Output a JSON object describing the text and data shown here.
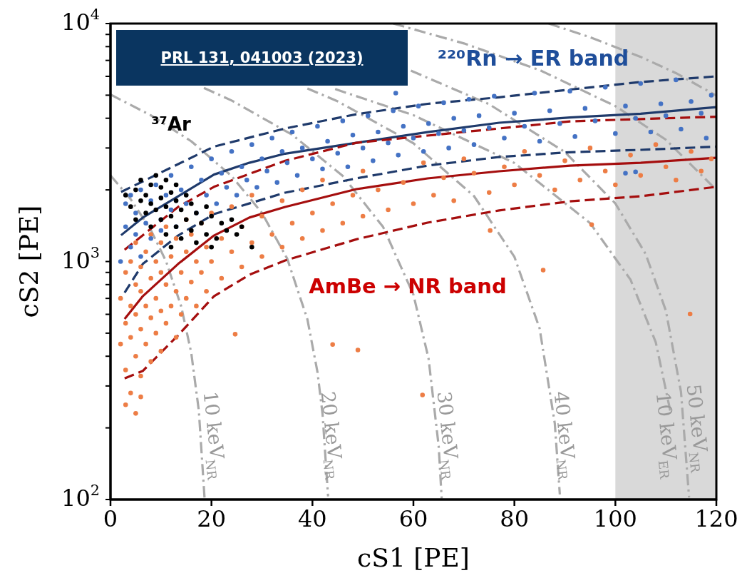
{
  "chart_data": {
    "type": "scatter",
    "xlabel": "cS1 [PE]",
    "ylabel": "cS2 [PE]",
    "xlim": [
      0,
      120
    ],
    "ylim": [
      100,
      10000
    ],
    "log": "y",
    "marker": "circle",
    "xticks": [
      0,
      20,
      40,
      60,
      80,
      100,
      120
    ],
    "yticks": [
      {
        "value": 100,
        "label": "10$^{2}$"
      },
      {
        "value": 200,
        "label": null
      },
      {
        "value": 300,
        "label": null
      },
      {
        "value": 400,
        "label": null
      },
      {
        "value": 500,
        "label": null
      },
      {
        "value": 600,
        "label": null
      },
      {
        "value": 700,
        "label": null
      },
      {
        "value": 800,
        "label": null
      },
      {
        "value": 900,
        "label": null
      },
      {
        "value": 1000,
        "label": "10$^{3}$"
      },
      {
        "value": 2000,
        "label": null
      },
      {
        "value": 3000,
        "label": null
      },
      {
        "value": 4000,
        "label": null
      },
      {
        "value": 5000,
        "label": null
      },
      {
        "value": 6000,
        "label": null
      },
      {
        "value": 7000,
        "label": null
      },
      {
        "value": 8000,
        "label": null
      },
      {
        "value": 9000,
        "label": null
      },
      {
        "value": 10000,
        "label": "10$^{4}$"
      }
    ],
    "bands": [
      {
        "axis": "x",
        "from": 100,
        "to": 120,
        "color": "#d9d9d9"
      }
    ],
    "series": [
      {
        "type": "line",
        "color": "#aaaaaa",
        "line_style": "dashdot",
        "marker": "none",
        "x": [
          0,
          4,
          8,
          11,
          14,
          16,
          17.5,
          18.65
        ],
        "values": [
          2300,
          1828,
          1356,
          1003,
          649,
          413,
          236,
          100
        ]
      },
      {
        "type": "line",
        "color": "#aaaaaa",
        "line_style": "dashdot",
        "marker": "none",
        "x": [
          0,
          8,
          16,
          24,
          30,
          35,
          39,
          41,
          42,
          43.1
        ],
        "values": [
          5030,
          4115,
          3201,
          2286,
          1600,
          1029,
          572,
          343,
          229,
          103
        ]
      },
      {
        "type": "line",
        "color": "#aaaaaa",
        "line_style": "dashdot",
        "marker": "none",
        "x": [
          18.5,
          24,
          36,
          46,
          54,
          60,
          63,
          65,
          65.6
        ],
        "values": [
          5363,
          4749,
          3408,
          2290,
          1397,
          726,
          391,
          168,
          101
        ]
      },
      {
        "type": "line",
        "color": "#aaaaaa",
        "line_style": "dashdot",
        "marker": "none",
        "x": [
          39,
          45,
          60,
          72,
          80,
          85,
          88,
          89
        ],
        "values": [
          5338,
          4710,
          3140,
          1884,
          1047,
          523,
          209,
          105
        ]
      },
      {
        "type": "line",
        "color": "#aaaaaa",
        "line_style": "dashdot",
        "marker": "none",
        "x": [
          59.5,
          75,
          90,
          100,
          106,
          110,
          113,
          114.6
        ],
        "values": [
          6338,
          4582,
          2885,
          1754,
          1075,
          622,
          283,
          102
        ]
      },
      {
        "type": "line",
        "color": "#aaaaaa",
        "line_style": "dashdot",
        "marker": "none",
        "x": [
          44.5,
          60,
          80,
          95,
          103,
          108,
          111
        ],
        "values": [
          5304,
          4121,
          2595,
          1450,
          839,
          458,
          229
        ]
      },
      {
        "type": "line",
        "color": "#aaaaaa",
        "line_style": "dashdot",
        "marker": "none",
        "x": [
          56,
          70,
          85,
          100,
          110,
          120
        ],
        "values": [
          10000,
          8250,
          6375,
          4500,
          3250,
          2000
        ]
      },
      {
        "type": "line",
        "color": "#aaaaaa",
        "line_style": "dashdot",
        "marker": "none",
        "x": [
          86.8,
          95,
          105,
          112,
          120
        ],
        "values": [
          10000,
          8757,
          7247,
          6190,
          4980
        ]
      },
      {
        "type": "scatter",
        "color": "#ed7d45",
        "x": [
          2,
          2,
          3,
          3,
          3,
          4,
          4,
          4,
          4,
          5,
          5,
          5,
          5,
          6,
          6,
          6,
          6,
          7,
          7,
          7,
          8,
          8,
          8,
          8,
          9,
          9,
          9,
          10,
          10,
          10,
          10,
          11,
          11,
          11,
          12,
          12,
          13,
          13,
          13,
          14,
          14,
          15,
          15,
          15,
          16,
          16,
          17,
          17,
          18,
          18,
          19,
          19,
          20,
          20,
          22,
          22,
          24,
          24,
          26,
          26,
          28,
          28,
          30,
          30,
          32,
          34,
          34,
          36,
          38,
          38,
          40,
          42,
          42,
          44,
          46,
          48,
          50,
          50,
          53,
          55,
          58,
          60,
          62,
          64,
          66,
          68,
          70,
          72,
          75,
          78,
          80,
          82,
          85,
          88,
          90,
          93,
          95,
          98,
          100,
          103,
          105,
          108,
          110,
          112,
          115,
          117,
          119,
          24.7,
          44,
          49,
          61.8,
          85.7,
          114.8,
          95.3,
          75.2,
          3,
          5,
          6
        ],
        "values": [
          450,
          700,
          350,
          550,
          900,
          280,
          480,
          650,
          1000,
          400,
          600,
          800,
          1200,
          330,
          520,
          750,
          950,
          450,
          650,
          1100,
          380,
          580,
          850,
          1300,
          500,
          700,
          1000,
          420,
          620,
          900,
          1200,
          550,
          800,
          1400,
          650,
          1050,
          480,
          750,
          1250,
          600,
          900,
          700,
          1100,
          1500,
          820,
          1300,
          650,
          1000,
          900,
          1450,
          750,
          1150,
          1000,
          1600,
          850,
          1250,
          1100,
          1700,
          950,
          1400,
          1200,
          1900,
          1050,
          1550,
          1300,
          1150,
          1800,
          1450,
          1250,
          2000,
          1600,
          1350,
          2200,
          1750,
          1450,
          1900,
          1550,
          2400,
          2000,
          1650,
          2150,
          1750,
          2600,
          1900,
          2250,
          1800,
          2700,
          2350,
          1950,
          2500,
          2100,
          2900,
          2300,
          2000,
          2650,
          2200,
          3000,
          2400,
          2100,
          2800,
          2300,
          3100,
          2500,
          2200,
          2900,
          2400,
          2700,
          495,
          448,
          425,
          275,
          920,
          602,
          1430,
          1350,
          250,
          230,
          270
        ]
      },
      {
        "type": "scatter",
        "color": "#4472c4",
        "x": [
          2,
          3,
          3,
          4,
          4,
          5,
          5,
          6,
          6,
          7,
          8,
          8,
          9,
          10,
          10,
          11,
          12,
          12,
          13,
          14,
          15,
          16,
          17,
          18,
          19,
          20,
          21,
          22,
          23,
          24,
          25,
          26,
          27,
          28,
          29,
          30,
          31,
          32,
          33,
          34,
          35,
          36,
          37,
          38,
          40,
          41,
          42,
          43,
          45,
          46,
          47,
          48,
          50,
          51,
          52,
          53,
          55,
          56,
          57,
          58,
          60,
          61,
          62,
          63,
          65,
          66,
          67,
          68,
          70,
          71,
          72,
          73,
          75,
          76,
          78,
          80,
          82,
          84,
          85,
          87,
          89,
          91,
          92,
          94,
          96,
          98,
          100,
          102,
          104,
          105,
          107,
          109,
          110,
          112,
          113,
          115,
          117,
          118,
          119,
          56.5,
          102,
          104
        ],
        "values": [
          1000,
          1400,
          1750,
          1150,
          1900,
          1300,
          1600,
          1050,
          2000,
          1450,
          1250,
          1800,
          2100,
          1500,
          1350,
          1900,
          1650,
          2300,
          1400,
          2000,
          1750,
          2500,
          1600,
          2200,
          1900,
          2700,
          1750,
          2350,
          2050,
          2900,
          1900,
          2500,
          2200,
          3100,
          2050,
          2700,
          2400,
          3300,
          2150,
          2900,
          2600,
          3500,
          2300,
          3000,
          2700,
          3700,
          2450,
          3200,
          2850,
          3900,
          2500,
          3400,
          3000,
          4100,
          2650,
          3500,
          3150,
          4300,
          2800,
          3700,
          3300,
          4500,
          2900,
          3800,
          3450,
          4650,
          3000,
          4000,
          3550,
          4800,
          3100,
          4100,
          3650,
          4950,
          3300,
          4200,
          3700,
          5100,
          3200,
          4300,
          3800,
          5200,
          3350,
          4400,
          3900,
          5400,
          3450,
          4500,
          4000,
          5600,
          3500,
          4600,
          4100,
          5800,
          3600,
          4700,
          4200,
          3300,
          5000,
          5100,
          2350,
          2380
        ]
      },
      {
        "type": "scatter",
        "color": "#000000",
        "x": [
          3,
          4,
          5,
          5,
          6,
          6,
          7,
          7,
          8,
          8,
          8,
          9,
          9,
          10,
          10,
          10,
          11,
          11,
          11,
          12,
          12,
          13,
          13,
          13,
          14,
          14,
          15,
          15,
          16,
          16,
          17,
          17,
          18,
          19,
          19,
          20,
          21,
          22,
          23,
          24,
          25,
          26,
          28,
          20,
          12
        ],
        "values": [
          1900,
          1700,
          2000,
          1500,
          1800,
          2200,
          1600,
          1900,
          1400,
          2100,
          1750,
          1650,
          2300,
          1500,
          1850,
          2050,
          1300,
          1700,
          2200,
          1550,
          1950,
          1400,
          1800,
          2100,
          1250,
          1650,
          1500,
          1900,
          1350,
          1750,
          1600,
          1200,
          1450,
          1300,
          1700,
          1550,
          1250,
          1450,
          1350,
          1500,
          1300,
          1400,
          1150,
          1150,
          1150
        ]
      },
      {
        "type": "line",
        "color": "#1f3a6b",
        "line_style": "dashed",
        "marker": "none",
        "x": [
          2.1,
          13.4,
          20.5,
          34.6,
          48.7,
          62.8,
          77,
          91,
          105,
          120
        ],
        "values": [
          1960,
          2566,
          3040,
          3624,
          4159,
          4600,
          4900,
          5280,
          5680,
          6000
        ]
      },
      {
        "type": "line",
        "color": "#1f3a6b",
        "line_style": "solid",
        "marker": "none",
        "x": [
          2.1,
          6.4,
          13.4,
          20.5,
          27.5,
          34.6,
          48.7,
          62.8,
          77,
          91,
          105,
          120
        ],
        "values": [
          1290,
          1530,
          1880,
          2320,
          2600,
          2840,
          3155,
          3500,
          3830,
          4030,
          4180,
          4457
        ]
      },
      {
        "type": "line",
        "color": "#1f3a6b",
        "line_style": "dashed",
        "marker": "none",
        "x": [
          2.8,
          6.4,
          13.4,
          20.5,
          34.6,
          48.7,
          62.8,
          77,
          91,
          105,
          120
        ],
        "values": [
          740,
          977,
          1286,
          1583,
          1947,
          2235,
          2530,
          2749,
          2880,
          2946,
          3040
        ]
      },
      {
        "type": "line",
        "color": "#a50e0e",
        "line_style": "dashed",
        "marker": "none",
        "x": [
          2.8,
          13.4,
          20.5,
          34.6,
          48.7,
          62.8,
          77,
          91,
          105,
          120
        ],
        "values": [
          1120,
          1696,
          2060,
          2650,
          3155,
          3382,
          3624,
          3880,
          3970,
          4060
        ]
      },
      {
        "type": "line",
        "color": "#a50e0e",
        "line_style": "solid",
        "marker": "none",
        "x": [
          2.8,
          6.4,
          13.4,
          20.5,
          27.5,
          34.6,
          48.7,
          62.8,
          77,
          91,
          105,
          120
        ],
        "values": [
          574,
          715,
          977,
          1286,
          1530,
          1696,
          2015,
          2235,
          2395,
          2530,
          2600,
          2730
        ]
      },
      {
        "type": "line",
        "color": "#a50e0e",
        "line_style": "dashed",
        "marker": "none",
        "x": [
          2.8,
          6.4,
          13.4,
          20.5,
          27.5,
          34.6,
          48.7,
          62.8,
          77,
          91,
          105,
          120
        ],
        "values": [
          323,
          347,
          490,
          715,
          880,
          1010,
          1240,
          1457,
          1640,
          1790,
          1880,
          2060
        ]
      }
    ],
    "annotations": [
      "PRL 131, 041003 (2023)",
      "²²⁰Rn → ER band",
      "³⁷Ar",
      "AmBe → NR band",
      "10 keV$_{NR}$",
      "20 keV$_{NR}$",
      "30 keV$_{NR}$",
      "40 keV$_{NR}$",
      "50 keV$_{NR}$",
      "10 keV$_{ER}$"
    ]
  }
}
